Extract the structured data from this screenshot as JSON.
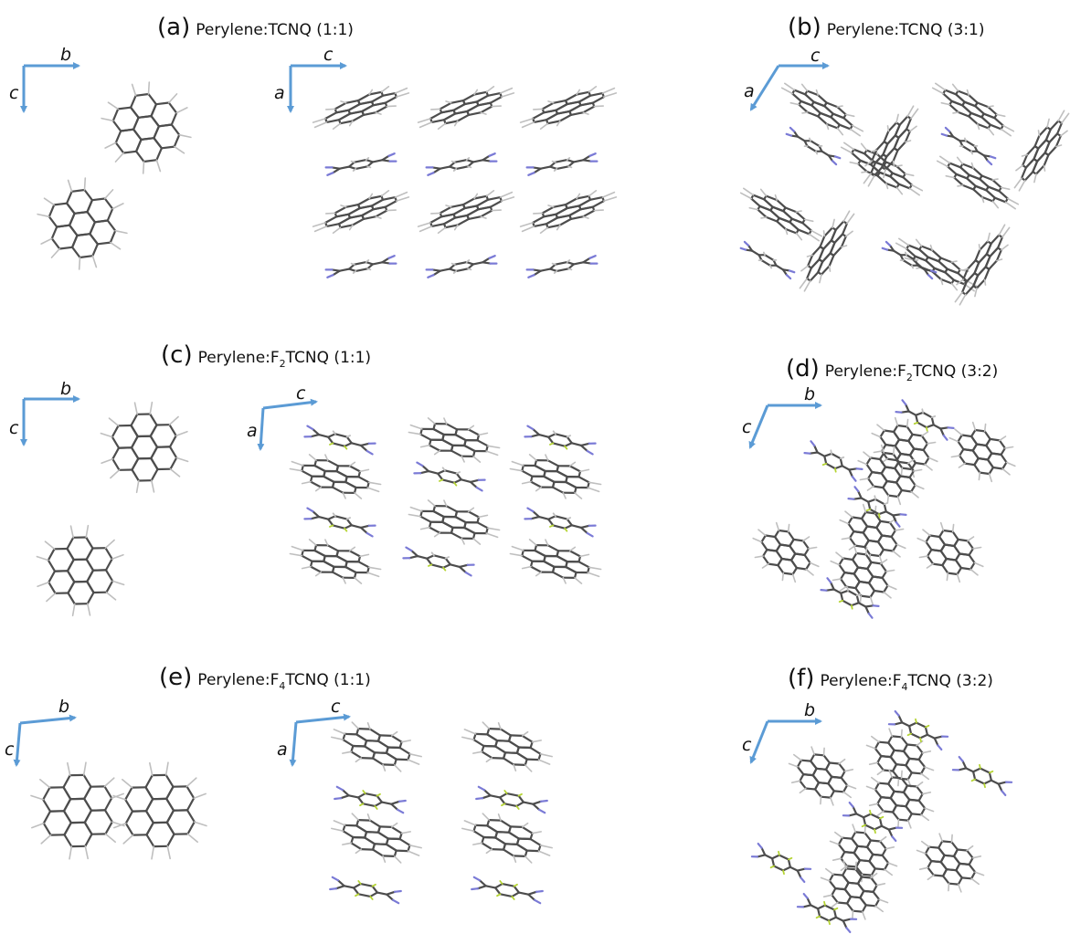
{
  "colors": {
    "axis": "#5b9bd5",
    "bond": "#4d4d4d",
    "hydrogen": "#bfbfbf",
    "nitrogen": "#7a7ad6",
    "fluorine": "#b5d433"
  },
  "panels": [
    {
      "letter": "(a)",
      "prefix": "Perylene:",
      "sub": "",
      "suffix": "TCNQ (1:1)"
    },
    {
      "letter": "(b)",
      "prefix": "Perylene:",
      "sub": "",
      "suffix": "TCNQ (3:1)"
    },
    {
      "letter": "(c)",
      "prefix": "Perylene:F",
      "sub": "2",
      "suffix": "TCNQ (1:1)"
    },
    {
      "letter": "(d)",
      "prefix": "Perylene:F",
      "sub": "2",
      "suffix": "TCNQ (3:2)"
    },
    {
      "letter": "(e)",
      "prefix": "Perylene:F",
      "sub": "4",
      "suffix": "TCNQ (1:1)"
    },
    {
      "letter": "(f)",
      "prefix": "Perylene:F",
      "sub": "4",
      "suffix": "TCNQ (3:2)"
    }
  ],
  "axes": {
    "b": "b",
    "c": "c",
    "a": "a"
  }
}
